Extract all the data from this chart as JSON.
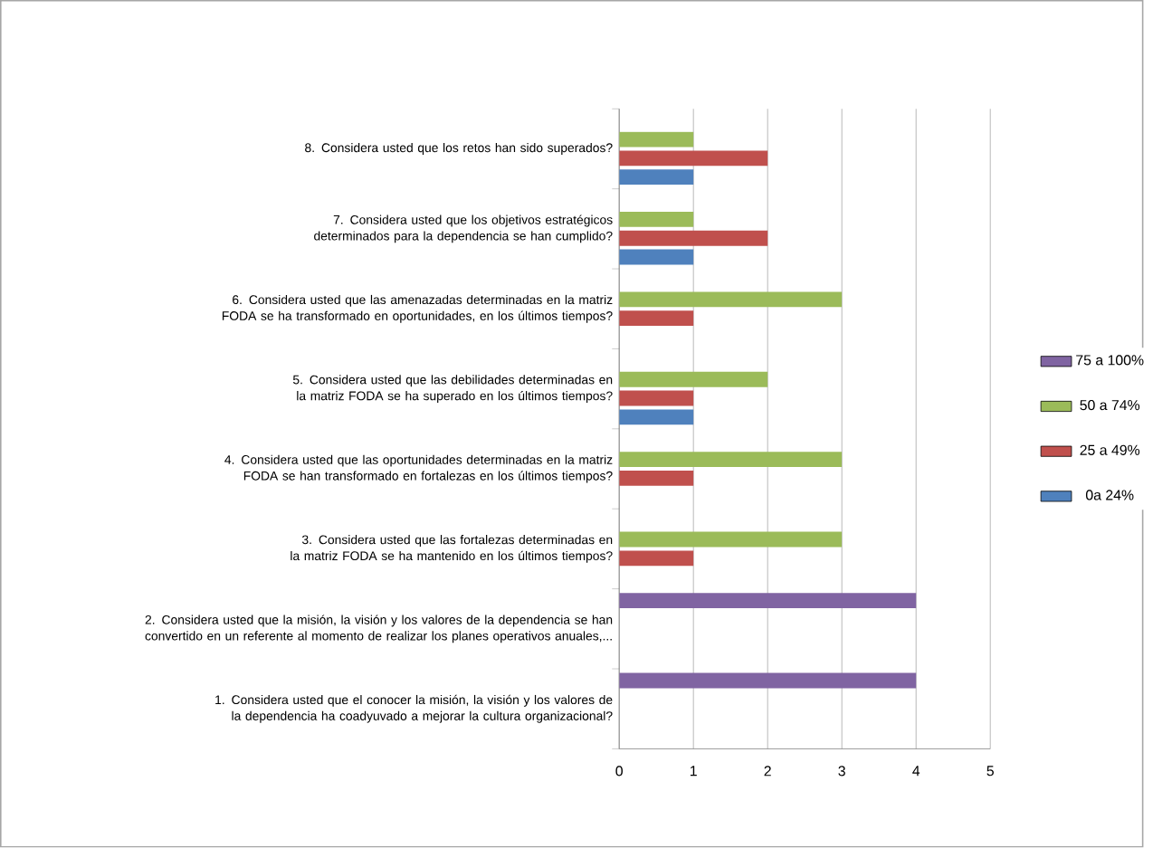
{
  "chart_data": {
    "type": "bar",
    "orientation": "horizontal",
    "categories": [
      "8. Considera usted que los retos han sido superados?",
      "7. Considera usted que los objetivos estratégicos determinados para la dependencia se han cumplido?",
      "6. Considera usted que las amenazadas determinadas en la matriz FODA se ha transformado en oportunidades, en los últimos tiempos?",
      "5. Considera usted que las debilidades determinadas en la matriz FODA se ha superado en los últimos tiempos?",
      "4. Considera usted que las oportunidades determinadas en la matriz FODA se han transformado en fortalezas en los últimos tiempos?",
      "3. Considera usted que las fortalezas determinadas en la matriz FODA se ha mantenido en los últimos tiempos?",
      "2. Considera usted que la misión, la visión y los valores de la dependencia se han convertido en un referente al momento de realizar los planes operativos anuales,...",
      "1. Considera usted que el conocer la misión, la visión y los valores de la dependencia ha coadyuvado a mejorar la cultura organizacional?"
    ],
    "series": [
      {
        "name": "0a 24%",
        "color": "#4f81bd",
        "values": [
          1,
          1,
          null,
          1,
          null,
          null,
          null,
          null
        ]
      },
      {
        "name": "25 a 49%",
        "color": "#c0504d",
        "values": [
          2,
          2,
          1,
          1,
          1,
          1,
          null,
          null
        ]
      },
      {
        "name": "50 a 74%",
        "color": "#9bbb59",
        "values": [
          1,
          1,
          3,
          2,
          3,
          3,
          null,
          null
        ]
      },
      {
        "name": "75 a 100%",
        "color": "#8064a2",
        "values": [
          null,
          null,
          null,
          null,
          null,
          null,
          4,
          4
        ]
      }
    ],
    "xlim": [
      0,
      5
    ],
    "xticks": [
      0,
      1,
      2,
      3,
      4,
      5
    ],
    "grid": "x",
    "legend": "right"
  }
}
